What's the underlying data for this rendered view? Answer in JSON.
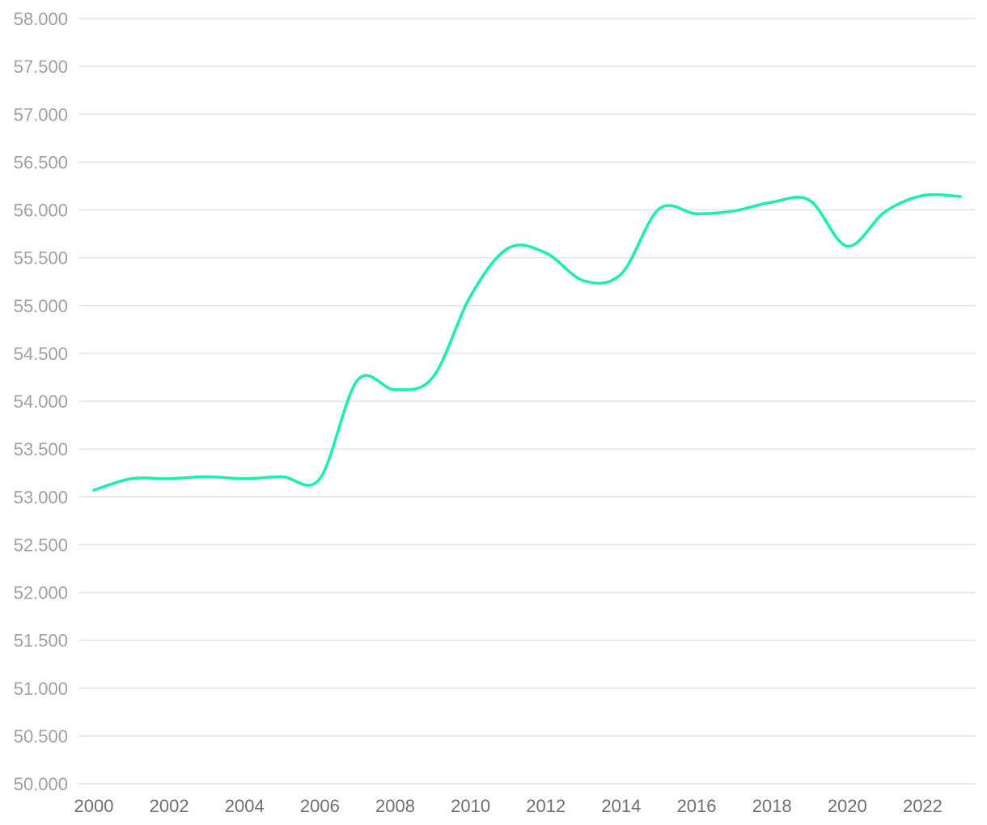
{
  "chart_data": {
    "type": "line",
    "title": "",
    "xlabel": "",
    "ylabel": "",
    "x": [
      2000,
      2001,
      2002,
      2003,
      2004,
      2005,
      2006,
      2007,
      2008,
      2009,
      2010,
      2011,
      2012,
      2013,
      2014,
      2015,
      2016,
      2017,
      2018,
      2019,
      2020,
      2021,
      2022,
      2023
    ],
    "series": [
      {
        "values": [
          53070,
          53190,
          53190,
          53210,
          53190,
          53210,
          53190,
          54220,
          54120,
          54250,
          55100,
          55600,
          55550,
          55260,
          55330,
          56010,
          55960,
          55990,
          56080,
          56100,
          55620,
          55980,
          56150,
          56140
        ],
        "color": "#1aefaf"
      }
    ],
    "xlim": [
      2000,
      2023
    ],
    "ylim": [
      50000,
      58000
    ],
    "y_ticks": [
      {
        "value": 50000,
        "label": "50.000"
      },
      {
        "value": 50500,
        "label": "50.500"
      },
      {
        "value": 51000,
        "label": "51.000"
      },
      {
        "value": 51500,
        "label": "51.500"
      },
      {
        "value": 52000,
        "label": "52.000"
      },
      {
        "value": 52500,
        "label": "52.500"
      },
      {
        "value": 53000,
        "label": "53.000"
      },
      {
        "value": 53500,
        "label": "53.500"
      },
      {
        "value": 54000,
        "label": "54.000"
      },
      {
        "value": 54500,
        "label": "54.500"
      },
      {
        "value": 55000,
        "label": "55.000"
      },
      {
        "value": 55500,
        "label": "55.500"
      },
      {
        "value": 56000,
        "label": "56.000"
      },
      {
        "value": 56500,
        "label": "56.500"
      },
      {
        "value": 57000,
        "label": "57.000"
      },
      {
        "value": 57500,
        "label": "57.500"
      },
      {
        "value": 58000,
        "label": "58.000"
      }
    ],
    "x_ticks": [
      {
        "value": 2000,
        "label": "2000"
      },
      {
        "value": 2002,
        "label": "2002"
      },
      {
        "value": 2004,
        "label": "2004"
      },
      {
        "value": 2006,
        "label": "2006"
      },
      {
        "value": 2008,
        "label": "2008"
      },
      {
        "value": 2010,
        "label": "2010"
      },
      {
        "value": 2012,
        "label": "2012"
      },
      {
        "value": 2014,
        "label": "2014"
      },
      {
        "value": 2016,
        "label": "2016"
      },
      {
        "value": 2018,
        "label": "2018"
      },
      {
        "value": 2020,
        "label": "2020"
      },
      {
        "value": 2022,
        "label": "2022"
      }
    ],
    "grid": true,
    "legend": "none",
    "smooth": true
  }
}
